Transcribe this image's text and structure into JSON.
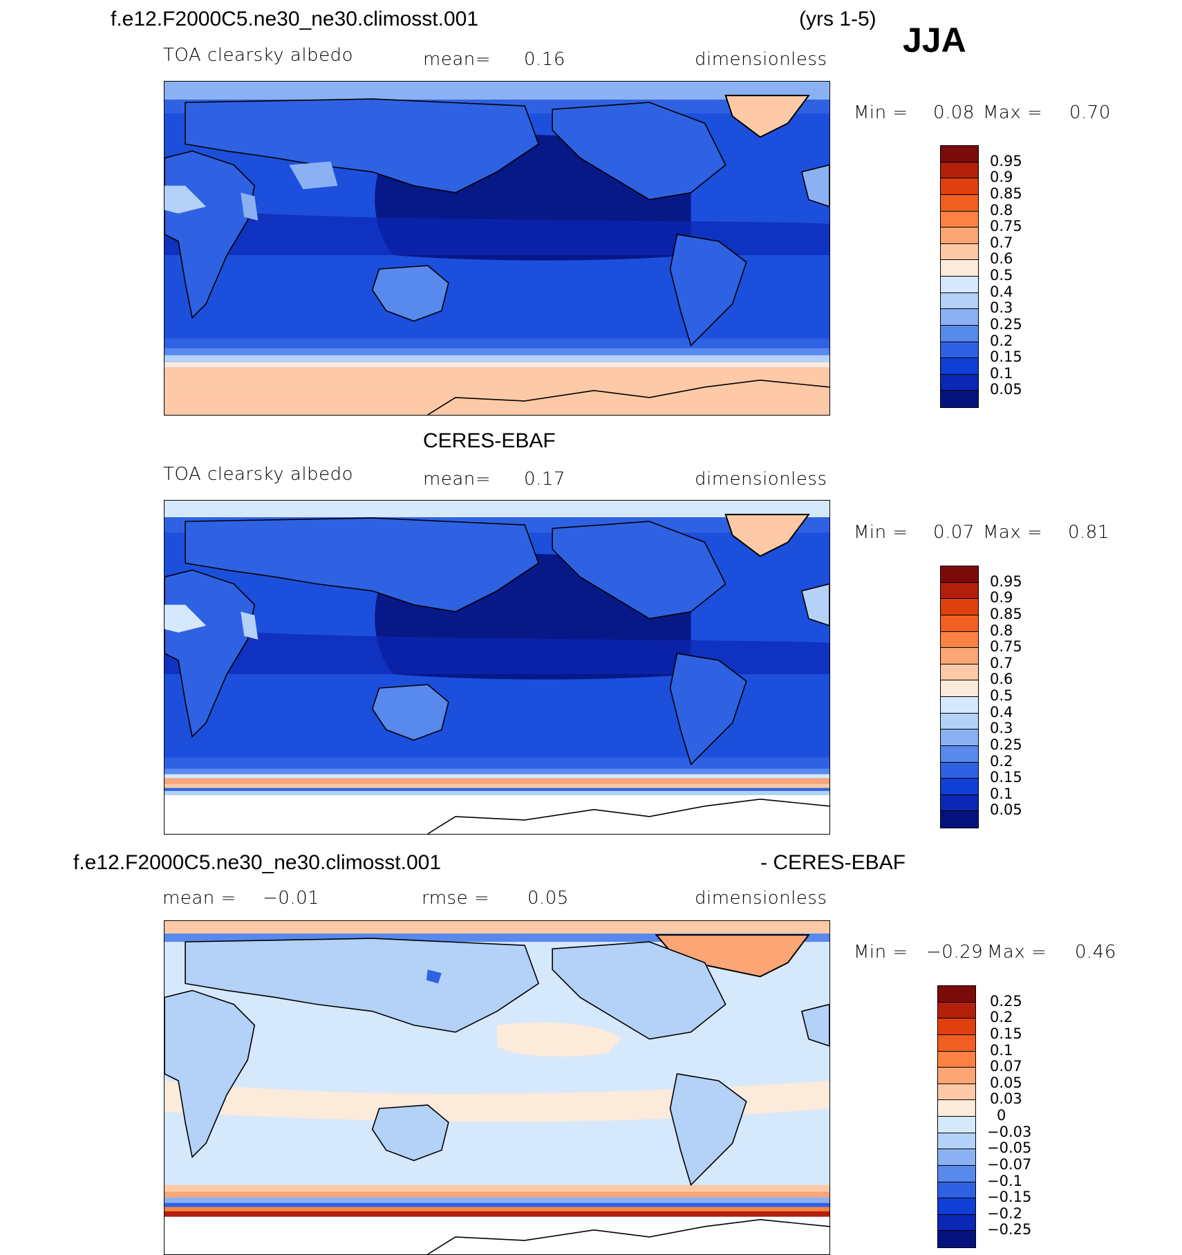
{
  "figure": {
    "season": "JJA",
    "years": "(yrs 1-5)"
  },
  "panels": [
    {
      "id": "model",
      "case_title": "f.e12.F2000C5.ne30_ne30.climosst.001",
      "variable": "TOA clearsky albedo",
      "stat_label": "mean=",
      "stat_value": "0.16",
      "units": "dimensionless",
      "min_label": "Min =",
      "min_value": "0.08",
      "max_label": "Max =",
      "max_value": "0.70",
      "colorbar": {
        "labels": [
          "0.95",
          "0.9",
          "0.85",
          "0.8",
          "0.75",
          "0.7",
          "0.6",
          "0.5",
          "0.4",
          "0.3",
          "0.25",
          "0.2",
          "0.15",
          "0.1",
          "0.05"
        ],
        "colors": [
          "#7b0b0b",
          "#b2200c",
          "#e0400e",
          "#f15f22",
          "#fb8242",
          "#fca575",
          "#fdc9a6",
          "#fceadb",
          "#d6e8fb",
          "#b4d1f7",
          "#8bb1f2",
          "#5889ec",
          "#2f62e2",
          "#103fd6",
          "#0a27b5",
          "#05127d"
        ]
      }
    },
    {
      "id": "obs",
      "case_title": "CERES-EBAF",
      "variable": "TOA clearsky albedo",
      "stat_label": "mean=",
      "stat_value": "0.17",
      "units": "dimensionless",
      "min_label": "Min =",
      "min_value": "0.07",
      "max_label": "Max =",
      "max_value": "0.81",
      "colorbar": {
        "labels": [
          "0.95",
          "0.9",
          "0.85",
          "0.8",
          "0.75",
          "0.7",
          "0.6",
          "0.5",
          "0.4",
          "0.3",
          "0.25",
          "0.2",
          "0.15",
          "0.1",
          "0.05"
        ],
        "colors": [
          "#7b0b0b",
          "#b2200c",
          "#e0400e",
          "#f15f22",
          "#fb8242",
          "#fca575",
          "#fdc9a6",
          "#fceadb",
          "#d6e8fb",
          "#b4d1f7",
          "#8bb1f2",
          "#5889ec",
          "#2f62e2",
          "#103fd6",
          "#0a27b5",
          "#05127d"
        ]
      }
    },
    {
      "id": "diff",
      "case_title": "f.e12.F2000C5.ne30_ne30.climosst.001",
      "case_suffix": "- CERES-EBAF",
      "stat_label": "mean =",
      "stat_value": "−0.01",
      "rmse_label": "rmse =",
      "rmse_value": "0.05",
      "units": "dimensionless",
      "min_label": "Min =",
      "min_value": "−0.29",
      "max_label": "Max =",
      "max_value": "0.46",
      "colorbar": {
        "labels": [
          "0.25",
          "0.2",
          "0.15",
          "0.1",
          "0.07",
          "0.05",
          "0.03",
          "0",
          "−0.03",
          "−0.05",
          "−0.07",
          "−0.1",
          "−0.15",
          "−0.2",
          "−0.25"
        ],
        "colors": [
          "#7b0b0b",
          "#b2200c",
          "#e0400e",
          "#f15f22",
          "#fb8242",
          "#fca575",
          "#fdc9a6",
          "#fceadb",
          "#d6e8fb",
          "#b4d1f7",
          "#8bb1f2",
          "#5889ec",
          "#2f62e2",
          "#103fd6",
          "#0a27b5",
          "#05127d"
        ]
      }
    }
  ]
}
